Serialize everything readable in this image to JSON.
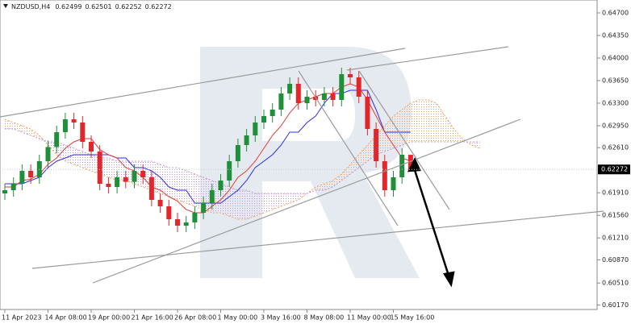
{
  "chart_data": {
    "type": "candlestick",
    "title": "NZDUSD,H4",
    "categories": [
      "11 Apr 2023",
      null,
      null,
      null,
      null,
      "14 Apr 08:00",
      null,
      null,
      null,
      null,
      "19 Apr 00:00",
      null,
      null,
      null,
      null,
      "21 Apr 16:00",
      null,
      null,
      null,
      null,
      "26 Apr 08:00",
      null,
      null,
      null,
      null,
      "1 May 00:00",
      null,
      null,
      null,
      null,
      "3 May 16:00",
      null,
      null,
      null,
      null,
      "8 May 08:00",
      null,
      null,
      null,
      null,
      "11 May 00:00",
      null,
      null,
      null,
      null,
      "15 May 16:00",
      null,
      null
    ],
    "open": [
      0.619,
      0.6195,
      0.6205,
      0.6225,
      0.6215,
      0.624,
      0.6262,
      0.6285,
      0.6305,
      0.63,
      0.627,
      0.6255,
      0.6205,
      0.62,
      0.6215,
      0.6208,
      0.6225,
      0.6215,
      0.618,
      0.617,
      0.615,
      0.614,
      0.6145,
      0.616,
      0.6175,
      0.6195,
      0.621,
      0.624,
      0.6265,
      0.628,
      0.63,
      0.631,
      0.632,
      0.6345,
      0.636,
      0.633,
      0.634,
      0.6335,
      0.6345,
      0.6335,
      0.6375,
      0.637,
      0.634,
      0.629,
      0.624,
      0.6195,
      0.6215,
      0.62499
    ],
    "high": [
      0.6205,
      0.6215,
      0.6235,
      0.6235,
      0.625,
      0.6272,
      0.6295,
      0.6315,
      0.6315,
      0.631,
      0.628,
      0.6265,
      0.6215,
      0.6225,
      0.6225,
      0.6235,
      0.6235,
      0.6225,
      0.619,
      0.618,
      0.616,
      0.6155,
      0.617,
      0.6185,
      0.6205,
      0.622,
      0.625,
      0.6275,
      0.629,
      0.631,
      0.632,
      0.633,
      0.6355,
      0.637,
      0.637,
      0.635,
      0.635,
      0.6355,
      0.6355,
      0.6385,
      0.6385,
      0.638,
      0.635,
      0.63,
      0.625,
      0.6225,
      0.626,
      0.62501
    ],
    "low": [
      0.618,
      0.6185,
      0.6195,
      0.6205,
      0.6205,
      0.623,
      0.6252,
      0.6275,
      0.629,
      0.626,
      0.6245,
      0.6195,
      0.619,
      0.619,
      0.6198,
      0.6198,
      0.6205,
      0.617,
      0.616,
      0.614,
      0.613,
      0.613,
      0.6135,
      0.615,
      0.6165,
      0.6185,
      0.62,
      0.623,
      0.6255,
      0.627,
      0.629,
      0.63,
      0.631,
      0.6335,
      0.632,
      0.632,
      0.6325,
      0.6325,
      0.6325,
      0.6325,
      0.636,
      0.633,
      0.628,
      0.623,
      0.6185,
      0.6185,
      0.6205,
      0.62252
    ],
    "close": [
      0.6195,
      0.6205,
      0.6225,
      0.6215,
      0.624,
      0.6262,
      0.6285,
      0.6305,
      0.63,
      0.627,
      0.6255,
      0.6205,
      0.62,
      0.6215,
      0.6208,
      0.6225,
      0.6215,
      0.618,
      0.617,
      0.615,
      0.614,
      0.6145,
      0.616,
      0.6175,
      0.6195,
      0.621,
      0.624,
      0.6265,
      0.628,
      0.63,
      0.631,
      0.632,
      0.6345,
      0.636,
      0.633,
      0.634,
      0.6335,
      0.6345,
      0.6335,
      0.6375,
      0.637,
      0.634,
      0.629,
      0.624,
      0.6195,
      0.6215,
      0.625,
      0.62272
    ],
    "up_color": "#1f8f3a",
    "down_color": "#e3262a",
    "tenkan": {
      "color": "#e53935",
      "values": [
        0.62,
        0.62,
        0.621,
        0.6212,
        0.622,
        0.6235,
        0.6245,
        0.626,
        0.627,
        0.6275,
        0.6275,
        0.6258,
        0.625,
        0.6245,
        0.623,
        0.6225,
        0.6215,
        0.62,
        0.6195,
        0.6185,
        0.6178,
        0.6165,
        0.616,
        0.616,
        0.617,
        0.618,
        0.6195,
        0.6215,
        0.6225,
        0.624,
        0.626,
        0.628,
        0.6295,
        0.6315,
        0.633,
        0.6335,
        0.634,
        0.6345,
        0.6345,
        0.6355,
        0.636,
        0.6355,
        0.6335,
        0.631,
        0.6285,
        0.6265,
        0.6245,
        0.624
      ]
    },
    "kijun": {
      "color": "#2b2bf0",
      "values": [
        0.6205,
        0.6205,
        0.6205,
        0.621,
        0.6215,
        0.623,
        0.624,
        0.6245,
        0.625,
        0.625,
        0.625,
        0.625,
        0.625,
        0.6245,
        0.6245,
        0.623,
        0.623,
        0.6225,
        0.6215,
        0.62,
        0.6195,
        0.6195,
        0.6175,
        0.6175,
        0.6175,
        0.6175,
        0.6185,
        0.6195,
        0.621,
        0.623,
        0.624,
        0.625,
        0.6265,
        0.6285,
        0.6285,
        0.63,
        0.631,
        0.633,
        0.6345,
        0.6345,
        0.635,
        0.635,
        0.635,
        0.632,
        0.6285,
        0.6285,
        0.6285,
        0.6285
      ]
    },
    "span_a": {
      "color": "#f0a060",
      "values": [
        0.6305,
        0.63,
        0.6295,
        0.629,
        0.628,
        0.6265,
        0.625,
        0.624,
        0.6235,
        0.623,
        0.6225,
        0.622,
        0.6215,
        0.621,
        0.621,
        0.6205,
        0.62,
        0.6195,
        0.619,
        0.6185,
        0.618,
        0.6175,
        0.617,
        0.6165,
        0.616,
        0.616,
        0.6155,
        0.615,
        0.615,
        0.6155,
        0.616,
        0.6165,
        0.617,
        0.6175,
        0.618,
        0.619,
        0.62,
        0.6205,
        0.621,
        0.622,
        0.6235,
        0.625,
        0.6265,
        0.628,
        0.6295,
        0.631,
        0.632,
        0.633,
        0.6335,
        0.6335,
        0.633,
        0.631,
        0.629,
        0.6275,
        0.6265,
        0.626
      ]
    },
    "span_b": {
      "color": "#c890d8",
      "values": [
        0.629,
        0.629,
        0.6285,
        0.628,
        0.6275,
        0.627,
        0.627,
        0.6265,
        0.626,
        0.6255,
        0.625,
        0.6245,
        0.6245,
        0.624,
        0.624,
        0.624,
        0.624,
        0.624,
        0.6235,
        0.623,
        0.623,
        0.6225,
        0.622,
        0.6215,
        0.621,
        0.6205,
        0.62,
        0.6195,
        0.6195,
        0.619,
        0.619,
        0.619,
        0.619,
        0.619,
        0.619,
        0.619,
        0.6195,
        0.6195,
        0.62,
        0.621,
        0.622,
        0.623,
        0.624,
        0.625,
        0.6255,
        0.626,
        0.6265,
        0.627,
        0.627,
        0.627,
        0.627,
        0.627,
        0.627,
        0.627,
        0.627,
        0.627
      ]
    },
    "ylim": [
      0.601,
      0.649
    ],
    "yticks": [
      {
        "value": 0.647,
        "label": "0.64700"
      },
      {
        "value": 0.6435,
        "label": "0.64350"
      },
      {
        "value": 0.64,
        "label": "0.64000"
      },
      {
        "value": 0.6365,
        "label": "0.63650"
      },
      {
        "value": 0.633,
        "label": "0.63300"
      },
      {
        "value": 0.6295,
        "label": "0.62950"
      },
      {
        "value": 0.6261,
        "label": "0.62610"
      },
      {
        "value": 0.6191,
        "label": "0.61910"
      },
      {
        "value": 0.6156,
        "label": "0.61560"
      },
      {
        "value": 0.6121,
        "label": "0.61210"
      },
      {
        "value": 0.6087,
        "label": "0.60870"
      },
      {
        "value": 0.6051,
        "label": "0.60510"
      },
      {
        "value": 0.6017,
        "label": "0.60170"
      }
    ]
  }
}
